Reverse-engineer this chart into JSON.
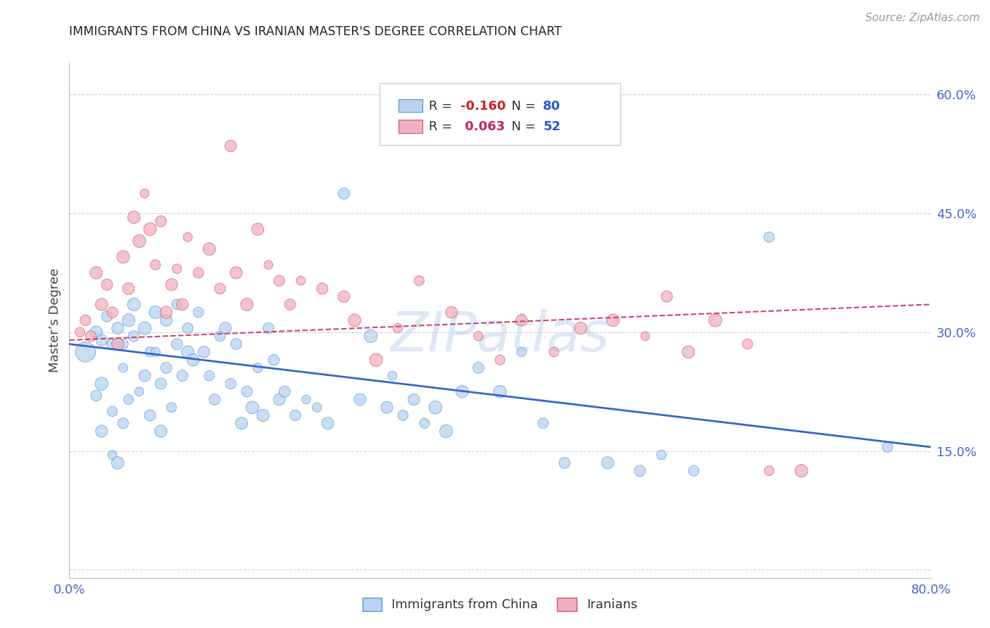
{
  "title": "IMMIGRANTS FROM CHINA VS IRANIAN MASTER'S DEGREE CORRELATION CHART",
  "source": "Source: ZipAtlas.com",
  "ylabel": "Master’s Degree",
  "xlim": [
    0.0,
    0.8
  ],
  "ylim": [
    -0.01,
    0.64
  ],
  "yticks": [
    0.0,
    0.15,
    0.3,
    0.45,
    0.6
  ],
  "ytick_labels": [
    "",
    "15.0%",
    "30.0%",
    "45.0%",
    "60.0%"
  ],
  "xticks": [
    0.0,
    0.2,
    0.4,
    0.6,
    0.8
  ],
  "xtick_labels": [
    "0.0%",
    "",
    "",
    "",
    "80.0%"
  ],
  "china_color": "#b8d4f0",
  "china_edge": "#5590d0",
  "iran_color": "#f0b0c0",
  "iran_edge": "#d05070",
  "china_trend_color": "#3366cc",
  "iran_trend_color": "#cc4466",
  "grid_color": "#ccccdd",
  "axis_label_color": "#4466cc",
  "title_color": "#222222",
  "ylabel_color": "#444444",
  "source_color": "#999999",
  "watermark_color": "#c8d8f0",
  "background_color": "#ffffff",
  "china_trend_x": [
    0.0,
    0.8
  ],
  "china_trend_y": [
    0.285,
    0.155
  ],
  "iran_trend_x": [
    0.0,
    0.8
  ],
  "iran_trend_y": [
    0.29,
    0.335
  ],
  "china_points_x": [
    0.015,
    0.025,
    0.025,
    0.03,
    0.03,
    0.03,
    0.035,
    0.04,
    0.04,
    0.04,
    0.045,
    0.045,
    0.05,
    0.05,
    0.05,
    0.055,
    0.055,
    0.06,
    0.06,
    0.065,
    0.07,
    0.07,
    0.075,
    0.075,
    0.08,
    0.08,
    0.085,
    0.085,
    0.09,
    0.09,
    0.095,
    0.1,
    0.1,
    0.105,
    0.11,
    0.11,
    0.115,
    0.12,
    0.125,
    0.13,
    0.135,
    0.14,
    0.145,
    0.15,
    0.155,
    0.16,
    0.165,
    0.17,
    0.175,
    0.18,
    0.185,
    0.19,
    0.195,
    0.2,
    0.21,
    0.22,
    0.23,
    0.24,
    0.255,
    0.27,
    0.28,
    0.295,
    0.3,
    0.31,
    0.32,
    0.33,
    0.34,
    0.35,
    0.365,
    0.38,
    0.4,
    0.42,
    0.44,
    0.46,
    0.5,
    0.53,
    0.55,
    0.58,
    0.65,
    0.76
  ],
  "china_points_y": [
    0.275,
    0.3,
    0.22,
    0.175,
    0.235,
    0.29,
    0.32,
    0.145,
    0.2,
    0.285,
    0.305,
    0.135,
    0.185,
    0.255,
    0.285,
    0.315,
    0.215,
    0.295,
    0.335,
    0.225,
    0.245,
    0.305,
    0.275,
    0.195,
    0.325,
    0.275,
    0.235,
    0.175,
    0.315,
    0.255,
    0.205,
    0.285,
    0.335,
    0.245,
    0.305,
    0.275,
    0.265,
    0.325,
    0.275,
    0.245,
    0.215,
    0.295,
    0.305,
    0.235,
    0.285,
    0.185,
    0.225,
    0.205,
    0.255,
    0.195,
    0.305,
    0.265,
    0.215,
    0.225,
    0.195,
    0.215,
    0.205,
    0.185,
    0.475,
    0.215,
    0.295,
    0.205,
    0.245,
    0.195,
    0.215,
    0.185,
    0.205,
    0.175,
    0.225,
    0.255,
    0.225,
    0.275,
    0.185,
    0.135,
    0.135,
    0.125,
    0.145,
    0.125,
    0.42,
    0.155
  ],
  "iran_points_x": [
    0.01,
    0.015,
    0.02,
    0.025,
    0.03,
    0.035,
    0.04,
    0.045,
    0.05,
    0.055,
    0.06,
    0.065,
    0.07,
    0.075,
    0.08,
    0.085,
    0.09,
    0.095,
    0.1,
    0.105,
    0.11,
    0.12,
    0.13,
    0.14,
    0.15,
    0.155,
    0.165,
    0.175,
    0.185,
    0.195,
    0.205,
    0.215,
    0.235,
    0.255,
    0.265,
    0.285,
    0.305,
    0.325,
    0.355,
    0.38,
    0.4,
    0.42,
    0.45,
    0.475,
    0.505,
    0.535,
    0.555,
    0.575,
    0.6,
    0.63,
    0.65,
    0.68
  ],
  "iran_points_y": [
    0.3,
    0.315,
    0.295,
    0.375,
    0.335,
    0.36,
    0.325,
    0.285,
    0.395,
    0.355,
    0.445,
    0.415,
    0.475,
    0.43,
    0.385,
    0.44,
    0.325,
    0.36,
    0.38,
    0.335,
    0.42,
    0.375,
    0.405,
    0.355,
    0.535,
    0.375,
    0.335,
    0.43,
    0.385,
    0.365,
    0.335,
    0.365,
    0.355,
    0.345,
    0.315,
    0.265,
    0.305,
    0.365,
    0.325,
    0.295,
    0.265,
    0.315,
    0.275,
    0.305,
    0.315,
    0.295,
    0.345,
    0.275,
    0.315,
    0.285,
    0.125,
    0.125
  ]
}
